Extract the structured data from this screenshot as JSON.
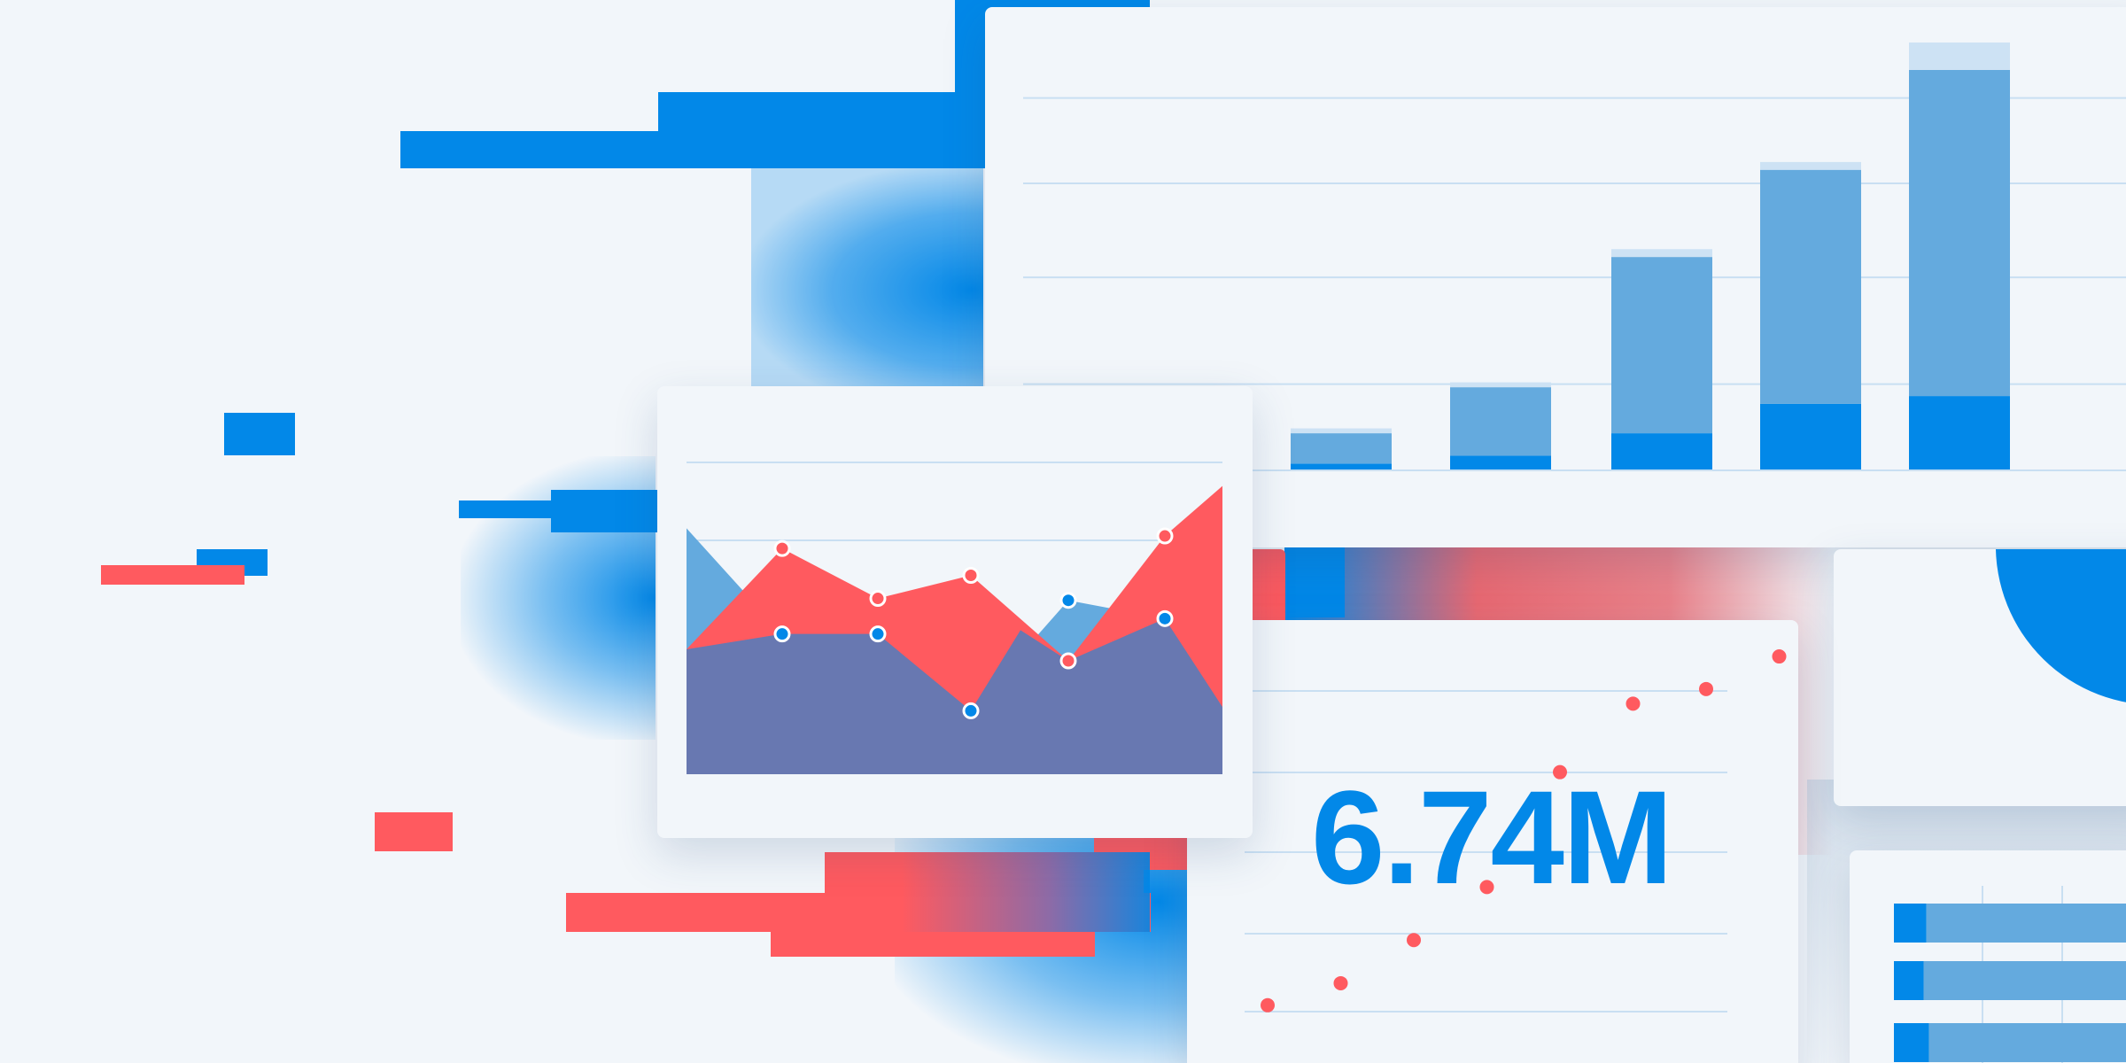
{
  "colors": {
    "background": "#f2f6fa",
    "blue": "#0288e8",
    "blue_light": "#64aade",
    "blue_pale": "#cde2f4",
    "red": "#ff5a5f",
    "purple": "#6878b1",
    "grid": "#c9dff2"
  },
  "metric": {
    "value": "6.74M"
  },
  "chart_data": [
    {
      "type": "bar",
      "stacked": true,
      "categories": [
        "",
        "",
        "",
        "",
        ""
      ],
      "series": [
        {
          "name": "",
          "color": "#0288e8",
          "values": [
            6,
            14,
            37,
            67,
            75
          ]
        },
        {
          "name": "",
          "color": "#64aade",
          "values": [
            31,
            70,
            180,
            239,
            333
          ]
        },
        {
          "name": "",
          "color": "#cde2f4",
          "values": [
            5,
            5,
            8,
            8,
            28
          ]
        }
      ],
      "ylim": [
        0,
        436
      ],
      "grid": true
    },
    {
      "type": "area",
      "x": [
        1,
        2,
        3,
        4,
        5,
        6
      ],
      "series": [
        {
          "name": "",
          "color": "#ff5a5f",
          "values": [
            235,
            183,
            207,
            118,
            248,
            300
          ]
        },
        {
          "name": "",
          "color": "#64aade",
          "values": [
            146,
            146,
            66,
            181,
            162,
            70
          ]
        }
      ],
      "ylim": [
        0,
        367
      ],
      "grid": true
    },
    {
      "type": "scatter",
      "series": [
        {
          "name": "",
          "color": "#ff5a5f",
          "points": [
            [
              1,
              60
            ],
            [
              2,
              87
            ],
            [
              3,
              140
            ],
            [
              4,
              205
            ],
            [
              5,
              346
            ],
            [
              6,
              430
            ],
            [
              7,
              448
            ],
            [
              8,
              488
            ]
          ]
        }
      ],
      "grid": true
    },
    {
      "type": "bar",
      "orientation": "horizontal",
      "stacked": true,
      "categories": [
        "",
        "",
        ""
      ],
      "series": [
        {
          "name": "",
          "color": "#0288e8",
          "values": [
            12,
            11,
            13
          ]
        },
        {
          "name": "",
          "color": "#64aade",
          "values": [
            93,
            78,
            80
          ]
        }
      ],
      "xlim": [
        0,
        105
      ]
    }
  ]
}
